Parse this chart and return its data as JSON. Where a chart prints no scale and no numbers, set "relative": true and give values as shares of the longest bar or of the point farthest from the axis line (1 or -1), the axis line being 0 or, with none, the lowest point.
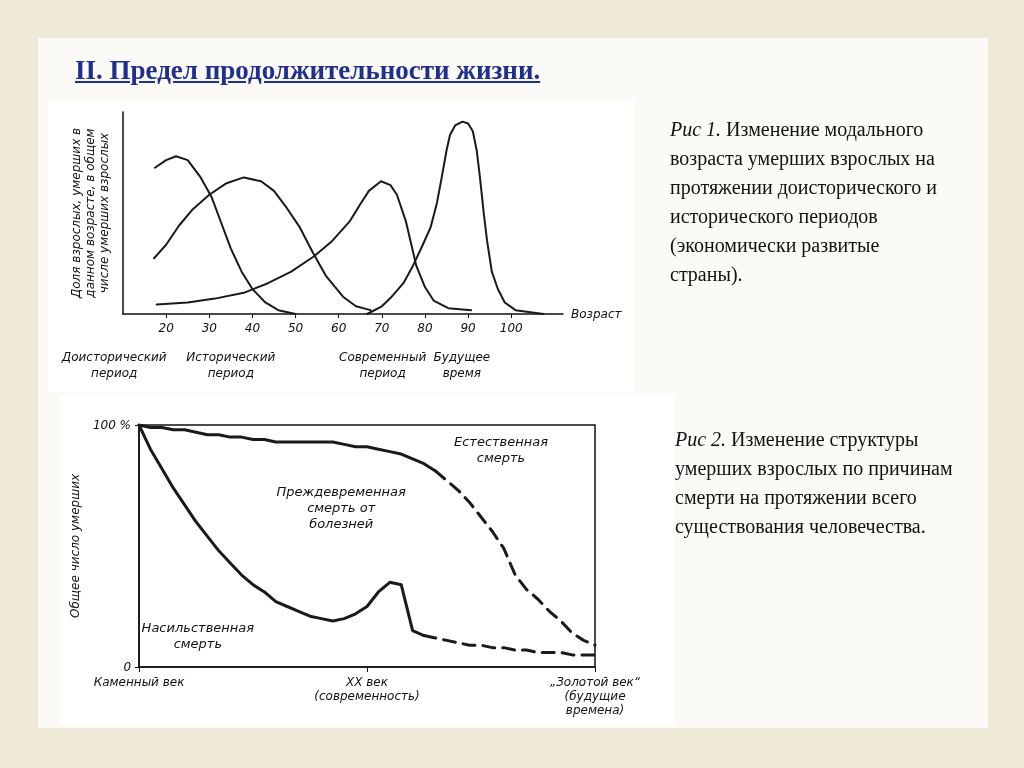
{
  "chart_data": [
    {
      "type": "line",
      "title": "II. Предел продолжительности жизни.",
      "annotations": [
        "Рис 1. Изменение модального возраста умерших взрослых на протяжении доисторического и исторического периодов (экономически развитые страны).",
        "Доисторический период",
        "Исторический период",
        "Современный период",
        "Будущее время"
      ],
      "xlabel": "Возраст",
      "ylabel": "Доля взрослых, умерших в данном возрасте, в общем числе умерших взрослых",
      "relative": true,
      "xlim": [
        10,
        112
      ],
      "xticks": [
        20,
        30,
        40,
        50,
        60,
        70,
        80,
        90,
        100
      ],
      "grid": false,
      "legend": false,
      "marker": "none",
      "line_style": "solid",
      "series": [
        {
          "color": "#1a1a1a",
          "x": [
            17.4,
            20,
            22.3,
            25,
            28,
            30.5,
            33,
            35,
            37.5,
            40,
            43,
            46,
            50
          ],
          "values": [
            0.76,
            0.8,
            0.82,
            0.8,
            0.71,
            0.61,
            0.46,
            0.34,
            0.22,
            0.13,
            0.06,
            0.02,
            0
          ]
        },
        {
          "color": "#1a1a1a",
          "x": [
            17.2,
            20,
            23,
            26,
            30,
            34,
            38,
            42,
            45,
            48,
            51,
            54,
            57,
            61,
            64,
            67.4
          ],
          "values": [
            0.29,
            0.36,
            0.46,
            0.54,
            0.62,
            0.68,
            0.71,
            0.69,
            0.64,
            0.55,
            0.45,
            0.32,
            0.2,
            0.09,
            0.04,
            0.02
          ]
        },
        {
          "color": "#1a1a1a",
          "x": [
            17.8,
            25,
            31.3,
            38,
            43.6,
            49,
            54.3,
            58.5,
            62.5,
            65,
            67,
            69.8,
            72,
            73.5,
            75.6,
            78,
            80,
            82,
            85.4,
            90.7
          ],
          "values": [
            0.05,
            0.06,
            0.08,
            0.11,
            0.16,
            0.22,
            0.3,
            0.38,
            0.48,
            0.57,
            0.64,
            0.69,
            0.67,
            0.62,
            0.48,
            0.25,
            0.14,
            0.07,
            0.03,
            0.02
          ]
        },
        {
          "color": "#1a1a1a",
          "x": [
            66.6,
            70,
            72.3,
            75,
            77.2,
            79.5,
            81.3,
            82.8,
            83.8,
            85,
            85.8,
            87,
            88.7,
            90,
            91.1,
            92,
            92.8,
            93.6,
            94.4,
            95.5,
            96.9,
            98.5,
            101,
            104,
            107.5
          ],
          "values": [
            0,
            0.04,
            0.09,
            0.16,
            0.25,
            0.36,
            0.45,
            0.58,
            0.7,
            0.85,
            0.93,
            0.98,
            1,
            0.99,
            0.95,
            0.85,
            0.7,
            0.53,
            0.38,
            0.22,
            0.13,
            0.06,
            0.02,
            0.01,
            0
          ]
        }
      ]
    },
    {
      "type": "line",
      "annotations": [
        "Рис 2. Изменение структуры умерших взрослых по причинам смерти на протяжении всего существования человечества.",
        "Естественная смерть",
        "Преждевременная смерть от болезней",
        "Насильственная смерть"
      ],
      "ylabel": "Общее число умерших",
      "categories": [
        "Каменный век",
        null,
        null,
        null,
        null,
        null,
        null,
        null,
        null,
        null,
        null,
        null,
        null,
        null,
        null,
        null,
        null,
        null,
        null,
        null,
        "XX век (современность)",
        null,
        null,
        null,
        null,
        null,
        null,
        null,
        null,
        null,
        null,
        null,
        null,
        null,
        null,
        null,
        null,
        null,
        null,
        null,
        "„Золотой век“ (будущие времена)"
      ],
      "ylim": [
        0,
        100
      ],
      "yticks": [
        0,
        {
          "value": 100,
          "label": "100 %"
        }
      ],
      "grid": false,
      "legend": false,
      "marker": "none",
      "series": [
        {
          "color": "#1a1a1a",
          "line_style": "solid",
          "values": [
            100,
            99,
            99,
            98,
            98,
            97,
            96,
            96,
            95,
            95,
            94,
            94,
            93,
            93,
            93,
            93,
            93,
            93,
            92,
            91,
            91,
            90,
            89,
            88,
            86,
            84,
            81,
            null,
            null,
            null,
            null,
            null,
            null,
            null,
            null,
            null,
            null,
            null,
            null,
            null,
            null
          ]
        },
        {
          "color": "#1a1a1a",
          "line_style": "dashed",
          "values": [
            null,
            null,
            null,
            null,
            null,
            null,
            null,
            null,
            null,
            null,
            null,
            null,
            null,
            null,
            null,
            null,
            null,
            null,
            null,
            null,
            null,
            null,
            null,
            null,
            null,
            null,
            81,
            77,
            73,
            68,
            62,
            56,
            49,
            38,
            32,
            28,
            23,
            19,
            14,
            11,
            9
          ]
        },
        {
          "color": "#1a1a1a",
          "line_style": "solid",
          "values": [
            100,
            90,
            82,
            74,
            67,
            60,
            54,
            48,
            43,
            38,
            34,
            31,
            27,
            25,
            23,
            21,
            20,
            19,
            20,
            22,
            25,
            31,
            35,
            34,
            15,
            13,
            null,
            null,
            null,
            null,
            null,
            null,
            null,
            null,
            null,
            null,
            null,
            null,
            null,
            null,
            null
          ]
        },
        {
          "color": "#1a1a1a",
          "line_style": "dashed",
          "values": [
            null,
            null,
            null,
            null,
            null,
            null,
            null,
            null,
            null,
            null,
            null,
            null,
            null,
            null,
            null,
            null,
            null,
            null,
            null,
            null,
            null,
            null,
            null,
            null,
            null,
            13,
            12,
            11,
            10,
            9,
            9,
            8,
            8,
            7,
            7,
            6,
            6,
            6,
            5,
            5,
            5
          ]
        }
      ]
    }
  ]
}
